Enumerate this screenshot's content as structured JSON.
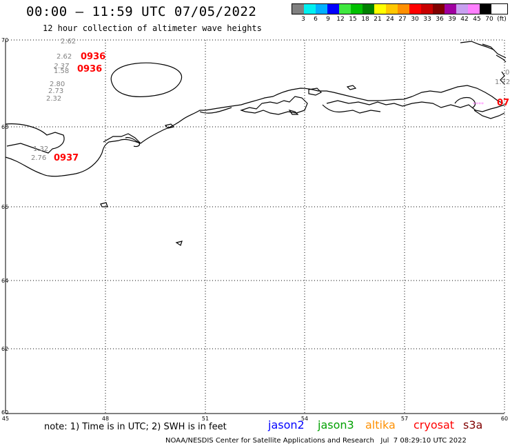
{
  "header": {
    "title": "00:00 – 11:59 UTC 07/05/2022",
    "subtitle": "12 hour collection of altimeter wave heights"
  },
  "scale": {
    "unit": "(ft)",
    "colors": [
      "#808080",
      "#00f0f0",
      "#00b0ff",
      "#0000ff",
      "#40e840",
      "#00c000",
      "#008000",
      "#ffff00",
      "#ffc800",
      "#ff9000",
      "#ff0000",
      "#c80000",
      "#800000",
      "#a000a0",
      "#c8a0f0",
      "#ff80ff",
      "#000000"
    ],
    "labels": [
      "3",
      "6",
      "9",
      "12",
      "15",
      "18",
      "21",
      "24",
      "27",
      "30",
      "33",
      "36",
      "39",
      "42",
      "45",
      "70"
    ]
  },
  "map": {
    "lat_ticks": [
      "70",
      "68",
      "66",
      "64",
      "62",
      "60"
    ],
    "lon_ticks": [
      "45",
      "48",
      "51",
      "54",
      "57",
      "60"
    ]
  },
  "observations": [
    {
      "text": "2.62",
      "color": "#808080"
    },
    {
      "text": "2.62",
      "color": "#808080"
    },
    {
      "text": "0936",
      "color": "#ff0000"
    },
    {
      "text": "2.37",
      "color": "#808080"
    },
    {
      "text": "1.58",
      "color": "#808080"
    },
    {
      "text": "0936",
      "color": "#ff0000"
    },
    {
      "text": "2.80",
      "color": "#808080"
    },
    {
      "text": "2.73",
      "color": "#808080"
    },
    {
      "text": "2.32",
      "color": "#808080"
    },
    {
      "text": "1.32",
      "color": "#808080"
    },
    {
      "text": "2.76",
      "color": "#808080"
    },
    {
      "text": "0937",
      "color": "#ff0000"
    },
    {
      "text": "1.72",
      "color": "#808080"
    },
    {
      "text": "0",
      "color": "#808080"
    },
    {
      "text": "07",
      "color": "#ff0000"
    },
    {
      "text": "****",
      "color": "#ff80ff"
    }
  ],
  "footer": {
    "note": "note: 1) Time is in UTC; 2) SWH is in feet",
    "satellites": [
      {
        "name": "jason2",
        "color": "#0000ff"
      },
      {
        "name": "jason3",
        "color": "#00a000"
      },
      {
        "name": "altika",
        "color": "#ff9000"
      },
      {
        "name": "cryosat",
        "color": "#ff0000"
      },
      {
        "name": "s3a",
        "color": "#800000"
      }
    ],
    "credit": "NOAA/NESDIS Center for Satellite Applications and Research   Jul  7 08:29:10 UTC 2022"
  }
}
